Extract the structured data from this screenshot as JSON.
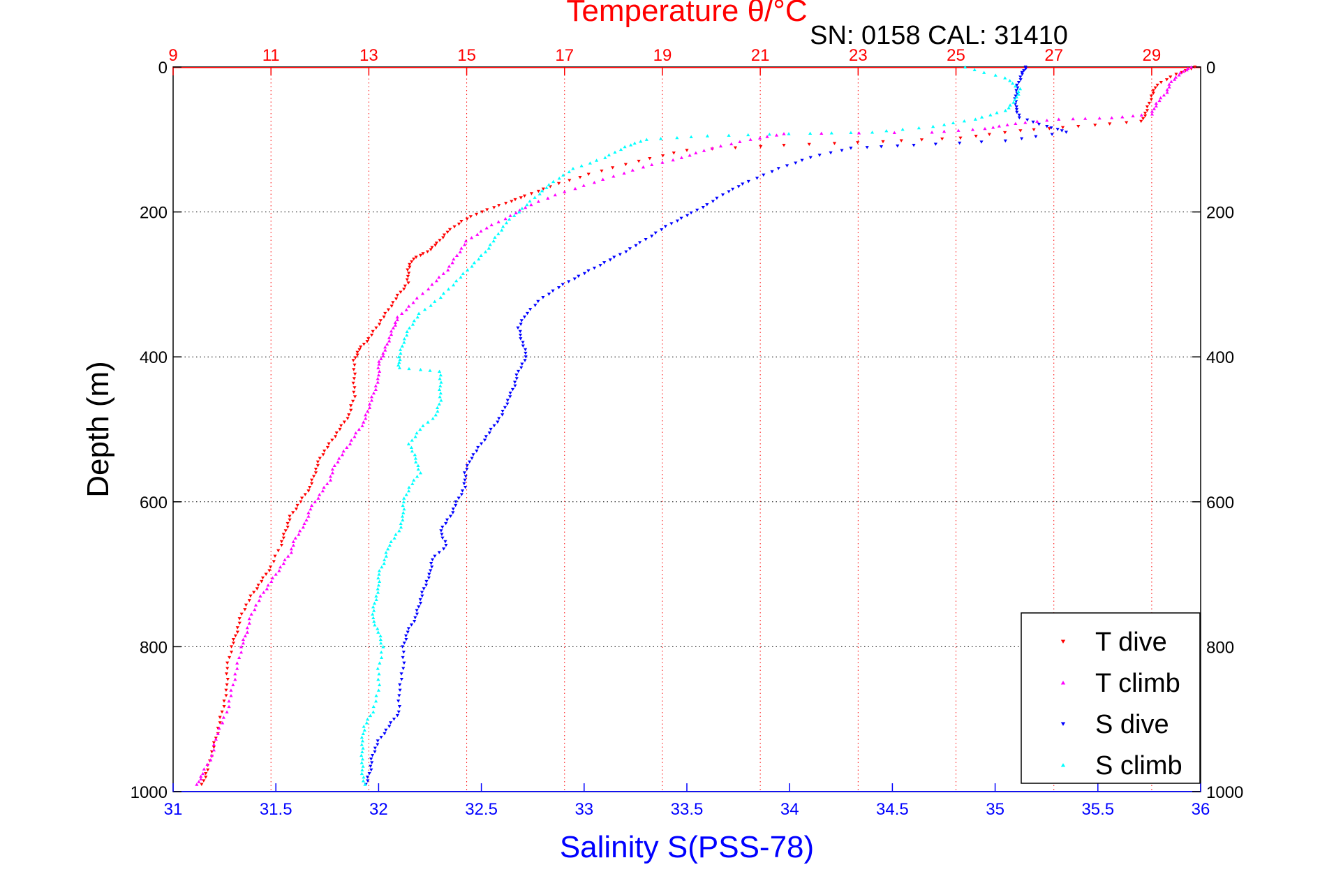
{
  "chart_data": {
    "type": "scatter",
    "title_top": "Temperature θ/°C",
    "subtitle": "SN: 0158  CAL: 31410",
    "xlabel_bottom": "Salinity S(PSS-78)",
    "ylabel": "Depth (m)",
    "y_axis": {
      "range": [
        0,
        1000
      ],
      "inverted": true,
      "ticks": [
        "0",
        "200",
        "400",
        "600",
        "800",
        "1000"
      ],
      "tick_values": [
        0,
        200,
        400,
        600,
        800,
        1000
      ]
    },
    "x_axis_bottom": {
      "range": [
        31,
        36
      ],
      "ticks": [
        "31",
        "31.5",
        "32",
        "32.5",
        "33",
        "33.5",
        "34",
        "34.5",
        "35",
        "35.5",
        "36"
      ],
      "tick_values": [
        31,
        31.5,
        32,
        32.5,
        33,
        33.5,
        34,
        34.5,
        35,
        35.5,
        36
      ]
    },
    "x_axis_top": {
      "range": [
        9,
        30
      ],
      "ticks": [
        "9",
        "11",
        "13",
        "15",
        "17",
        "19",
        "21",
        "23",
        "25",
        "27",
        "29"
      ],
      "tick_values": [
        9,
        11,
        13,
        15,
        17,
        19,
        21,
        23,
        25,
        27,
        29
      ]
    },
    "grid": {
      "vertical_from": "top axis",
      "horizontal_from": "depth axis"
    },
    "legend_position": "bottom-right",
    "series": [
      {
        "name": "T dive",
        "axis": "top",
        "color": "#ff0000",
        "marker": "triangle-down",
        "points": [
          [
            29.9,
            0
          ],
          [
            29.5,
            10
          ],
          [
            29.1,
            25
          ],
          [
            29.0,
            40
          ],
          [
            28.9,
            60
          ],
          [
            28.8,
            75
          ],
          [
            27.5,
            82
          ],
          [
            26.3,
            88
          ],
          [
            25.1,
            98
          ],
          [
            23.5,
            103
          ],
          [
            21.5,
            108
          ],
          [
            19.5,
            115
          ],
          [
            18.5,
            130
          ],
          [
            17.5,
            148
          ],
          [
            16.7,
            165
          ],
          [
            16.2,
            178
          ],
          [
            15.8,
            188
          ],
          [
            15.3,
            200
          ],
          [
            14.9,
            213
          ],
          [
            14.6,
            228
          ],
          [
            14.4,
            243
          ],
          [
            14.2,
            255
          ],
          [
            13.9,
            265
          ],
          [
            13.8,
            280
          ],
          [
            13.8,
            298
          ],
          [
            13.6,
            315
          ],
          [
            13.4,
            335
          ],
          [
            13.2,
            355
          ],
          [
            13.0,
            375
          ],
          [
            12.8,
            390
          ],
          [
            12.7,
            405
          ],
          [
            12.7,
            430
          ],
          [
            12.7,
            455
          ],
          [
            12.6,
            480
          ],
          [
            12.4,
            500
          ],
          [
            12.2,
            520
          ],
          [
            12.0,
            540
          ],
          [
            11.9,
            560
          ],
          [
            11.8,
            580
          ],
          [
            11.6,
            600
          ],
          [
            11.4,
            620
          ],
          [
            11.3,
            640
          ],
          [
            11.2,
            660
          ],
          [
            11.0,
            690
          ],
          [
            10.8,
            710
          ],
          [
            10.6,
            730
          ],
          [
            10.4,
            755
          ],
          [
            10.3,
            780
          ],
          [
            10.2,
            800
          ],
          [
            10.1,
            830
          ],
          [
            10.1,
            860
          ],
          [
            10.0,
            890
          ],
          [
            9.9,
            920
          ],
          [
            9.8,
            945
          ],
          [
            9.7,
            970
          ],
          [
            9.6,
            990
          ]
        ]
      },
      {
        "name": "T climb",
        "axis": "top",
        "color": "#ff00ff",
        "marker": "triangle-up",
        "points": [
          [
            29.8,
            0
          ],
          [
            29.6,
            8
          ],
          [
            29.4,
            20
          ],
          [
            29.3,
            35
          ],
          [
            29.1,
            50
          ],
          [
            29.0,
            65
          ],
          [
            28.2,
            70
          ],
          [
            27.1,
            72
          ],
          [
            26.2,
            78
          ],
          [
            25.6,
            85
          ],
          [
            24.5,
            90
          ],
          [
            21.5,
            92
          ],
          [
            20.8,
            100
          ],
          [
            20.0,
            112
          ],
          [
            19.4,
            125
          ],
          [
            18.6,
            138
          ],
          [
            17.8,
            155
          ],
          [
            17.0,
            172
          ],
          [
            16.3,
            190
          ],
          [
            15.9,
            205
          ],
          [
            15.4,
            222
          ],
          [
            15.0,
            240
          ],
          [
            14.8,
            260
          ],
          [
            14.6,
            280
          ],
          [
            14.3,
            300
          ],
          [
            13.9,
            325
          ],
          [
            13.6,
            345
          ],
          [
            13.5,
            360
          ],
          [
            13.4,
            378
          ],
          [
            13.3,
            395
          ],
          [
            13.2,
            410
          ],
          [
            13.2,
            430
          ],
          [
            13.1,
            450
          ],
          [
            13.0,
            470
          ],
          [
            12.9,
            490
          ],
          [
            12.7,
            510
          ],
          [
            12.5,
            530
          ],
          [
            12.3,
            550
          ],
          [
            12.2,
            570
          ],
          [
            12.0,
            590
          ],
          [
            11.8,
            610
          ],
          [
            11.7,
            630
          ],
          [
            11.5,
            650
          ],
          [
            11.4,
            670
          ],
          [
            11.2,
            690
          ],
          [
            11.0,
            710
          ],
          [
            10.8,
            730
          ],
          [
            10.6,
            755
          ],
          [
            10.5,
            780
          ],
          [
            10.4,
            800
          ],
          [
            10.3,
            830
          ],
          [
            10.2,
            860
          ],
          [
            10.1,
            890
          ],
          [
            9.9,
            920
          ],
          [
            9.8,
            950
          ],
          [
            9.6,
            975
          ],
          [
            9.5,
            990
          ]
        ]
      },
      {
        "name": "S dive",
        "axis": "bottom",
        "color": "#0000ff",
        "marker": "triangle-down",
        "points": [
          [
            35.15,
            0
          ],
          [
            35.13,
            10
          ],
          [
            35.11,
            25
          ],
          [
            35.1,
            40
          ],
          [
            35.1,
            55
          ],
          [
            35.12,
            70
          ],
          [
            35.25,
            82
          ],
          [
            35.35,
            90
          ],
          [
            35.05,
            102
          ],
          [
            34.6,
            108
          ],
          [
            34.3,
            112
          ],
          [
            34.1,
            125
          ],
          [
            33.95,
            140
          ],
          [
            33.8,
            158
          ],
          [
            33.7,
            172
          ],
          [
            33.6,
            190
          ],
          [
            33.5,
            205
          ],
          [
            33.4,
            220
          ],
          [
            33.3,
            238
          ],
          [
            33.2,
            255
          ],
          [
            33.1,
            270
          ],
          [
            33.0,
            285
          ],
          [
            32.9,
            300
          ],
          [
            32.8,
            318
          ],
          [
            32.72,
            340
          ],
          [
            32.68,
            360
          ],
          [
            32.7,
            380
          ],
          [
            32.72,
            400
          ],
          [
            32.68,
            420
          ],
          [
            32.66,
            440
          ],
          [
            32.63,
            460
          ],
          [
            32.6,
            480
          ],
          [
            32.55,
            500
          ],
          [
            32.5,
            520
          ],
          [
            32.45,
            540
          ],
          [
            32.42,
            560
          ],
          [
            32.42,
            580
          ],
          [
            32.38,
            600
          ],
          [
            32.35,
            620
          ],
          [
            32.3,
            640
          ],
          [
            32.33,
            660
          ],
          [
            32.26,
            680
          ],
          [
            32.25,
            700
          ],
          [
            32.22,
            720
          ],
          [
            32.2,
            740
          ],
          [
            32.18,
            760
          ],
          [
            32.14,
            780
          ],
          [
            32.12,
            800
          ],
          [
            32.12,
            830
          ],
          [
            32.1,
            860
          ],
          [
            32.1,
            890
          ],
          [
            32.05,
            910
          ],
          [
            32.0,
            930
          ],
          [
            31.97,
            950
          ],
          [
            31.96,
            970
          ],
          [
            31.94,
            990
          ]
        ]
      },
      {
        "name": "S climb",
        "axis": "bottom",
        "color": "#00ffff",
        "marker": "triangle-up",
        "points": [
          [
            34.85,
            0
          ],
          [
            35.05,
            15
          ],
          [
            35.12,
            30
          ],
          [
            35.1,
            45
          ],
          [
            35.05,
            60
          ],
          [
            34.9,
            72
          ],
          [
            34.7,
            82
          ],
          [
            34.4,
            90
          ],
          [
            34.0,
            92
          ],
          [
            33.6,
            95
          ],
          [
            33.3,
            100
          ],
          [
            33.2,
            110
          ],
          [
            33.1,
            125
          ],
          [
            32.95,
            140
          ],
          [
            32.85,
            158
          ],
          [
            32.78,
            175
          ],
          [
            32.7,
            195
          ],
          [
            32.62,
            215
          ],
          [
            32.57,
            235
          ],
          [
            32.52,
            255
          ],
          [
            32.45,
            275
          ],
          [
            32.38,
            295
          ],
          [
            32.3,
            318
          ],
          [
            32.2,
            340
          ],
          [
            32.15,
            360
          ],
          [
            32.12,
            380
          ],
          [
            32.1,
            400
          ],
          [
            32.1,
            415
          ],
          [
            32.3,
            420
          ],
          [
            32.3,
            440
          ],
          [
            32.3,
            460
          ],
          [
            32.28,
            480
          ],
          [
            32.2,
            500
          ],
          [
            32.15,
            520
          ],
          [
            32.18,
            540
          ],
          [
            32.2,
            560
          ],
          [
            32.15,
            580
          ],
          [
            32.12,
            600
          ],
          [
            32.12,
            620
          ],
          [
            32.1,
            640
          ],
          [
            32.05,
            660
          ],
          [
            32.03,
            680
          ],
          [
            32.0,
            700
          ],
          [
            32.0,
            720
          ],
          [
            31.98,
            740
          ],
          [
            31.97,
            760
          ],
          [
            32.0,
            780
          ],
          [
            32.02,
            800
          ],
          [
            32.0,
            830
          ],
          [
            32.0,
            860
          ],
          [
            31.97,
            890
          ],
          [
            31.93,
            910
          ],
          [
            31.92,
            930
          ],
          [
            31.92,
            950
          ],
          [
            31.92,
            970
          ],
          [
            31.93,
            990
          ]
        ]
      }
    ]
  }
}
